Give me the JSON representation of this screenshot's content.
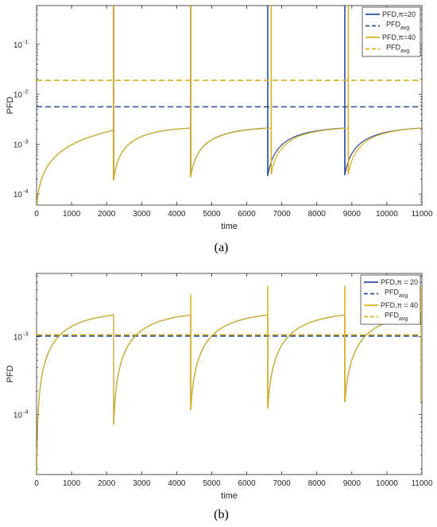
{
  "colors": {
    "blue": "#2b4e9e",
    "gold": "#d8b21f",
    "axis": "#262626",
    "grid": "#dcdcdc"
  },
  "chart_data": [
    {
      "type": "line",
      "caption": "(a)",
      "xlabel": "time",
      "ylabel": "PFD",
      "xlim": [
        0,
        11000
      ],
      "ylim": [
        6e-05,
        0.6
      ],
      "yscale": "log",
      "grid": false,
      "legend_position": "top-right",
      "x_ticks": [
        0,
        1000,
        2000,
        3000,
        4000,
        5000,
        6000,
        7000,
        8000,
        9000,
        10000,
        11000
      ],
      "x_tick_labels": [
        "0",
        "1000",
        "2000",
        "3000",
        "4000",
        "5000",
        "6000",
        "7000",
        "8000",
        "9000",
        "10000",
        "11000"
      ],
      "y_ticks": [
        0.0001,
        0.001,
        0.01,
        0.1
      ],
      "y_tick_labels": [
        {
          "base": "10",
          "exp": "-4"
        },
        {
          "base": "10",
          "exp": "-3"
        },
        {
          "base": "10",
          "exp": "-2"
        },
        {
          "base": "10",
          "exp": "-1"
        }
      ],
      "series": [
        {
          "name": "PFD,π=20",
          "color": "#2b4e9e",
          "style": "solid",
          "segments": [
            {
              "x0": 0,
              "x1": 2200,
              "y_start": 6e-05,
              "y_end": 0.0019,
              "k": 7000
            },
            {
              "x0": 2200,
              "x1": 4400,
              "y_start": 0.00019,
              "y_end": 0.0021,
              "k": 900
            },
            {
              "x0": 4400,
              "x1": 6600,
              "y_start": 0.00022,
              "y_end": 0.0021,
              "k": 900
            },
            {
              "x0": 6600,
              "x1": 8800,
              "y_start": 0.00023,
              "y_end": 0.0021,
              "k": 900
            },
            {
              "x0": 8800,
              "x1": 11000,
              "y_start": 0.00024,
              "y_end": 0.0021,
              "k": 900
            }
          ],
          "spikes": [
            2200,
            4400,
            6600,
            8800
          ]
        },
        {
          "name": "PFDavg",
          "name_base": "PFD",
          "name_sub": "avg",
          "color": "#2b4e9e",
          "style": "dashed",
          "value": 0.0056
        },
        {
          "name": "PFD,π=40",
          "color": "#d8b21f",
          "style": "solid",
          "segments": [
            {
              "x0": 0,
              "x1": 2200,
              "y_start": 6e-05,
              "y_end": 0.0019,
              "k": 7000
            },
            {
              "x0": 2200,
              "x1": 4400,
              "y_start": 0.00019,
              "y_end": 0.0021,
              "k": 900
            },
            {
              "x0": 4400,
              "x1": 6700,
              "y_start": 0.00022,
              "y_end": 0.0021,
              "k": 900
            },
            {
              "x0": 6700,
              "x1": 8900,
              "y_start": 0.00025,
              "y_end": 0.0021,
              "k": 900
            },
            {
              "x0": 8900,
              "x1": 11000,
              "y_start": 0.00025,
              "y_end": 0.0021,
              "k": 900
            }
          ],
          "spikes": [
            2200,
            4400,
            6700,
            8900
          ]
        },
        {
          "name": "PFDavg",
          "name_base": "PFD",
          "name_sub": "avg",
          "color": "#d8b21f",
          "style": "dashed",
          "value": 0.019
        }
      ]
    },
    {
      "type": "line",
      "caption": "(b)",
      "xlabel": "time",
      "ylabel": "PFD",
      "xlim": [
        0,
        11000
      ],
      "ylim": [
        1.7e-05,
        0.0065
      ],
      "yscale": "log",
      "grid": false,
      "legend_position": "top-right",
      "x_ticks": [
        0,
        1000,
        2000,
        3000,
        4000,
        5000,
        6000,
        7000,
        8000,
        9000,
        10000,
        11000
      ],
      "x_tick_labels": [
        "0",
        "1000",
        "2000",
        "3000",
        "4000",
        "5000",
        "6000",
        "7000",
        "8000",
        "9000",
        "10000",
        "11000"
      ],
      "y_ticks": [
        0.0001,
        0.001
      ],
      "y_tick_labels": [
        {
          "base": "10",
          "exp": "-4"
        },
        {
          "base": "10",
          "exp": "-3"
        }
      ],
      "series": [
        {
          "name": "PFD,π = 20",
          "color": "#2b4e9e",
          "style": "solid",
          "segments": [
            {
              "x0": 0,
              "x1": 2200,
              "y_start": 1.7e-05,
              "y_end": 0.0019,
              "k": 1000
            },
            {
              "x0": 2200,
              "x1": 4400,
              "y_start": 7.4e-05,
              "y_end": 0.0019,
              "k": 1000
            },
            {
              "x0": 4400,
              "x1": 6600,
              "y_start": 0.000115,
              "y_end": 0.0019,
              "k": 1000
            },
            {
              "x0": 6600,
              "x1": 8800,
              "y_start": 0.00012,
              "y_end": 0.0019,
              "k": 1000
            },
            {
              "x0": 8800,
              "x1": 10980,
              "y_start": 0.000145,
              "y_end": 0.0019,
              "k": 1000
            }
          ],
          "spikes": [],
          "drop": {
            "x": 10980,
            "y": 0.00014
          }
        },
        {
          "name": "PFDavg",
          "name_base": "PFD",
          "name_sub": "avg",
          "color": "#2b4e9e",
          "style": "dashed",
          "value": 0.00102
        },
        {
          "name": "PFD,π = 40",
          "color": "#d8b21f",
          "style": "solid",
          "segments": [
            {
              "x0": 0,
              "x1": 2200,
              "y_start": 1.7e-05,
              "y_end": 0.0019,
              "k": 1000
            },
            {
              "x0": 2200,
              "x1": 4400,
              "y_start": 7.4e-05,
              "y_end": 0.0019,
              "k": 1000
            },
            {
              "x0": 4400,
              "x1": 6600,
              "y_start": 0.000115,
              "y_end": 0.0019,
              "k": 1000
            },
            {
              "x0": 6600,
              "x1": 8800,
              "y_start": 0.00012,
              "y_end": 0.0019,
              "k": 1000
            },
            {
              "x0": 8800,
              "x1": 11000,
              "y_start": 0.000145,
              "y_end": 0.0019,
              "k": 1000
            }
          ],
          "spikes": [
            {
              "x": 4400,
              "y": 0.0035
            },
            {
              "x": 6600,
              "y": 0.0045
            },
            {
              "x": 8800,
              "y": 0.0045
            },
            {
              "x": 10990,
              "y": 0.0045
            }
          ]
        },
        {
          "name": "PFDavg",
          "name_base": "PFD",
          "name_sub": "avg",
          "color": "#d8b21f",
          "style": "dashed",
          "value": 0.00106
        }
      ]
    }
  ]
}
